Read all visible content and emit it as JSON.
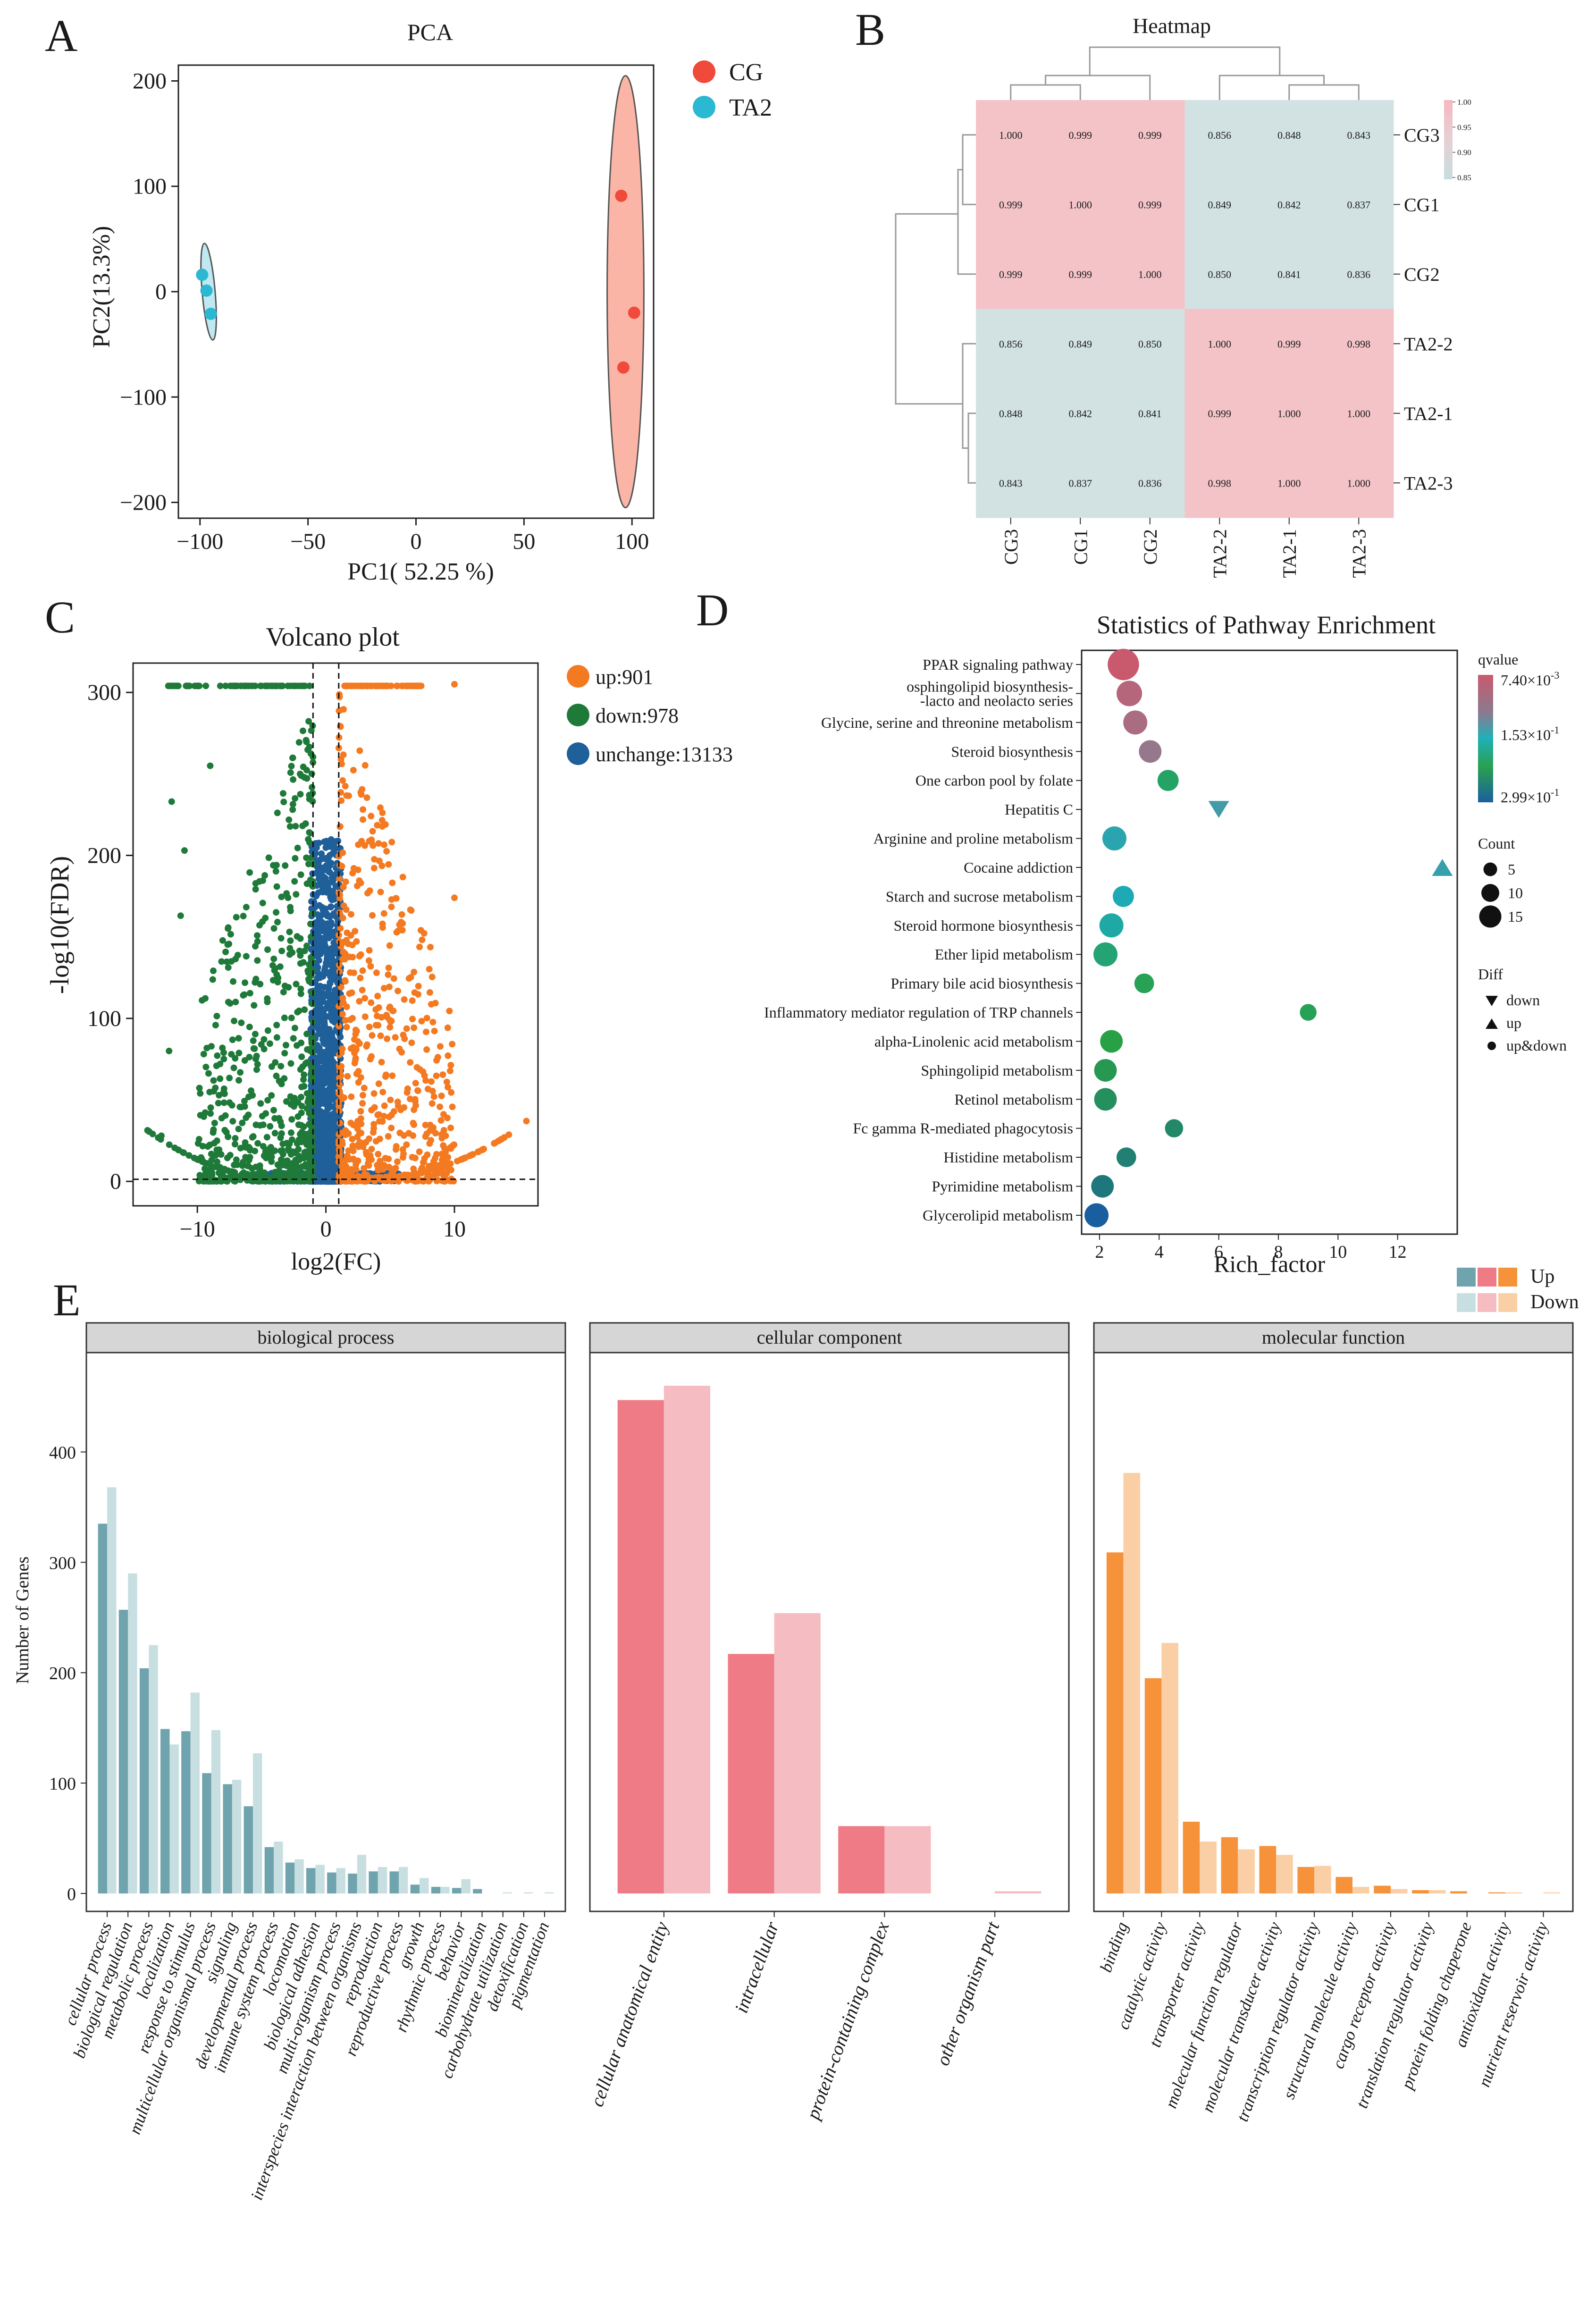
{
  "panel_letters": [
    "A",
    "B",
    "C",
    "D",
    "E"
  ],
  "chart_data": [
    {
      "id": "pca",
      "type": "scatter",
      "title": "PCA",
      "xlabel": "PC1( 52.25 %)",
      "ylabel": "PC2(13.3%)",
      "xlim": [
        -110,
        110
      ],
      "ylim": [
        -215,
        215
      ],
      "xticks": [
        -100,
        -50,
        0,
        50,
        100
      ],
      "yticks": [
        200,
        100,
        0,
        -100,
        -200
      ],
      "legend": [
        {
          "label": "CG",
          "color": "#f04a3a"
        },
        {
          "label": "TA2",
          "color": "#2ab8d3"
        }
      ],
      "series": [
        {
          "name": "CG",
          "color": "#f04a3a",
          "ellipse_fill": "#fbb5a6",
          "points": [
            [
              95,
              91
            ],
            [
              101,
              -20
            ],
            [
              96,
              -72
            ]
          ],
          "ellipse": {
            "cx": 97,
            "cy": 0,
            "rx": 8.5,
            "ry": 205
          }
        },
        {
          "name": "TA2",
          "color": "#2ab8d3",
          "ellipse_fill": "#bfe8f0",
          "points": [
            [
              -99,
              16
            ],
            [
              -97,
              1
            ],
            [
              -95,
              -21
            ]
          ],
          "ellipse": {
            "cx": -96,
            "cy": 0,
            "rx": 3,
            "ry": 46
          }
        }
      ]
    },
    {
      "id": "heatmap",
      "type": "heatmap",
      "title": "Heatmap",
      "row_labels": [
        "CG3",
        "CG1",
        "CG2",
        "TA2-2",
        "TA2-1",
        "TA2-3"
      ],
      "col_labels": [
        "CG3",
        "CG1",
        "CG2",
        "TA2-2",
        "TA2-1",
        "TA2-3"
      ],
      "values": [
        [
          "1.000",
          "0.999",
          "0.999",
          "0.856",
          "0.848",
          "0.843"
        ],
        [
          "0.999",
          "1.000",
          "0.999",
          "0.849",
          "0.842",
          "0.837"
        ],
        [
          "0.999",
          "0.999",
          "1.000",
          "0.850",
          "0.841",
          "0.836"
        ],
        [
          "0.856",
          "0.849",
          "0.850",
          "1.000",
          "0.999",
          "0.998"
        ],
        [
          "0.848",
          "0.842",
          "0.841",
          "0.999",
          "1.000",
          "1.000"
        ],
        [
          "0.843",
          "0.837",
          "0.836",
          "0.998",
          "1.000",
          "1.000"
        ]
      ],
      "color_high": "#f3c3c8",
      "color_low": "#d2e2e3",
      "colorbar_range": [
        0.85,
        1.0
      ],
      "colorbar_ticks": [
        "1.00",
        "0.95",
        "0.90",
        "0.85"
      ]
    },
    {
      "id": "volcano",
      "type": "scatter",
      "title": "Volcano plot",
      "xlabel": "log2(FC)",
      "ylabel": "-log10(FDR)",
      "xlim": [
        -15,
        16.5
      ],
      "ylim": [
        -15,
        318
      ],
      "xticks": [
        -10,
        0,
        10
      ],
      "yticks": [
        300,
        200,
        100,
        0
      ],
      "vlines": [
        -1,
        1
      ],
      "hline": 1.3,
      "legend": [
        {
          "label": "up:901",
          "color": "#f47a22"
        },
        {
          "label": "down:978",
          "color": "#1f7a3a"
        },
        {
          "label": "unchange:13133",
          "color": "#1f5f9a"
        }
      ],
      "counts": {
        "up": 901,
        "down": 978,
        "unchange": 13133
      },
      "colors": {
        "up": "#f47a22",
        "down": "#1f7a3a",
        "unchange": "#1f5f9a"
      }
    },
    {
      "id": "pathway",
      "type": "scatter",
      "title": "Statistics of Pathway Enrichment",
      "xlabel": "Rich_factor",
      "xticks": [
        2,
        4,
        6,
        8,
        10,
        12
      ],
      "xlim": [
        1.4,
        14.0
      ],
      "pathways": [
        {
          "name": "PPAR signaling pathway",
          "rich": 2.8,
          "count": 15,
          "q": 0.0,
          "shape": "circle"
        },
        {
          "name": "osphingolipid biosynthesis-",
          "name2": "-lacto and neolacto series",
          "rich": 3.0,
          "count": 11,
          "q": 0.02,
          "shape": "circle"
        },
        {
          "name": "Glycine, serine and threonine metabolism",
          "rich": 3.2,
          "count": 10,
          "q": 0.03,
          "shape": "circle"
        },
        {
          "name": "Steroid biosynthesis",
          "rich": 3.7,
          "count": 9,
          "q": 0.05,
          "shape": "circle"
        },
        {
          "name": "One carbon pool by folate",
          "rich": 4.3,
          "count": 8,
          "q": 0.2,
          "shape": "circle"
        },
        {
          "name": "Hepatitis C",
          "rich": 6.0,
          "count": 6,
          "q": 0.12,
          "shape": "down"
        },
        {
          "name": "Arginine and proline metabolism",
          "rich": 2.5,
          "count": 10,
          "q": 0.14,
          "shape": "circle"
        },
        {
          "name": "Cocaine addiction",
          "rich": 13.5,
          "count": 6,
          "q": 0.13,
          "shape": "up"
        },
        {
          "name": "Starch and sucrose metabolism",
          "rich": 2.8,
          "count": 8,
          "q": 0.15,
          "shape": "circle"
        },
        {
          "name": "Steroid hormone biosynthesis",
          "rich": 2.4,
          "count": 10,
          "q": 0.16,
          "shape": "circle"
        },
        {
          "name": "Ether lipid metabolism",
          "rich": 2.2,
          "count": 10,
          "q": 0.19,
          "shape": "circle"
        },
        {
          "name": "Primary bile acid biosynthesis",
          "rich": 3.5,
          "count": 7,
          "q": 0.21,
          "shape": "circle"
        },
        {
          "name": "Inflammatory mediator regulation of TRP channels",
          "rich": 9.0,
          "count": 5,
          "q": 0.21,
          "shape": "circle"
        },
        {
          "name": "alpha-Linolenic acid metabolism",
          "rich": 2.4,
          "count": 9,
          "q": 0.22,
          "shape": "circle"
        },
        {
          "name": "Sphingolipid metabolism",
          "rich": 2.2,
          "count": 9,
          "q": 0.23,
          "shape": "circle"
        },
        {
          "name": "Retinol metabolism",
          "rich": 2.2,
          "count": 9,
          "q": 0.24,
          "shape": "circle"
        },
        {
          "name": "Fc gamma R-mediated phagocytosis",
          "rich": 4.5,
          "count": 6,
          "q": 0.25,
          "shape": "circle"
        },
        {
          "name": "Histidine metabolism",
          "rich": 2.9,
          "count": 7,
          "q": 0.26,
          "shape": "circle"
        },
        {
          "name": "Pyrimidine metabolism",
          "rich": 2.1,
          "count": 9,
          "q": 0.27,
          "shape": "circle"
        },
        {
          "name": "Glycerolipid metabolism",
          "rich": 1.9,
          "count": 10,
          "q": 0.3,
          "shape": "circle"
        }
      ],
      "qvalue_title": "qvalue",
      "qvalue_labels": {
        "top": "7.40×10",
        "top_exp": "-3",
        "mid": "1.53×10",
        "mid_exp": "-1",
        "bottom": "2.99×10",
        "bottom_exp": "-1"
      },
      "count_title": "Count",
      "count_labels": [
        "5",
        "10",
        "15"
      ],
      "diff_title": "Diff",
      "diff_labels": [
        "down",
        "up",
        "up&down"
      ]
    },
    {
      "id": "go",
      "type": "bar",
      "ylabel": "Number of Genes",
      "yticks": [
        0,
        100,
        200,
        300,
        400
      ],
      "ylim": [
        0,
        490
      ],
      "legend": {
        "up": "Up",
        "down": "Down"
      },
      "facets": [
        {
          "title": "biological process",
          "color_up": "#6fa3ae",
          "color_down": "#c8dfe2",
          "categories": [
            "cellular process",
            "biological regulation",
            "metabolic process",
            "localization",
            "response to stimulus",
            "multicellular organismal process",
            "signaling",
            "developmental process",
            "immune system process",
            "locomotion",
            "biological adhesion",
            "multi-organism process",
            "interspecies interaction between organisms",
            "reproduction",
            "reproductive process",
            "growth",
            "rhythmic process",
            "behavior",
            "biomineralization",
            "carbohydrate utilization",
            "detoxification",
            "pigmentation"
          ],
          "up": [
            335,
            257,
            204,
            149,
            147,
            109,
            99,
            79,
            42,
            28,
            23,
            19,
            18,
            20,
            20,
            8,
            6,
            5,
            4,
            0,
            0,
            0
          ],
          "down": [
            368,
            290,
            225,
            135,
            182,
            148,
            103,
            127,
            47,
            31,
            26,
            23,
            35,
            24,
            24,
            14,
            6,
            13,
            0,
            1,
            1,
            1
          ]
        },
        {
          "title": "cellular component",
          "color_up": "#ef7b86",
          "color_down": "#f5bcc2",
          "categories": [
            "cellular anatomical entity",
            "intracellular",
            "protein-containing complex",
            "other organism part"
          ],
          "up": [
            447,
            217,
            61,
            0
          ],
          "down": [
            460,
            254,
            61,
            2
          ]
        },
        {
          "title": "molecular function",
          "color_up": "#f5923a",
          "color_down": "#fbcfa5",
          "categories": [
            "binding",
            "catalytic activity",
            "transporter activity",
            "molecular function regulator",
            "molecular transducer activity",
            "transcription regulator activity",
            "structural molecule activity",
            "cargo receptor activity",
            "translation regulator activity",
            "protein folding chaperone",
            "antioxidant activity",
            "nutrient reservoir activity"
          ],
          "up": [
            309,
            195,
            65,
            51,
            43,
            24,
            15,
            7,
            3,
            2,
            1,
            0
          ],
          "down": [
            381,
            227,
            47,
            40,
            35,
            25,
            6,
            4,
            3,
            0,
            1,
            1
          ]
        }
      ]
    }
  ]
}
